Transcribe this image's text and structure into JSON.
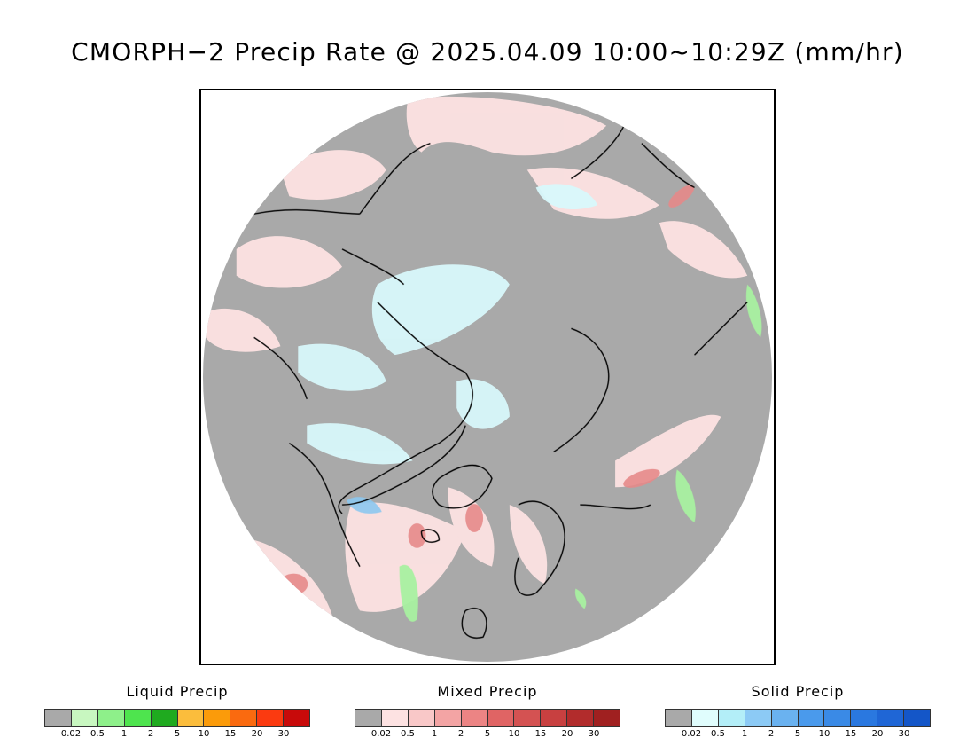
{
  "title": "CMORPH−2 Precip Rate @ 2025.04.09 10:00~10:29Z (mm/hr)",
  "map": {
    "projection": "north-polar-stereographic",
    "background_color": "#a9a9a9",
    "coastline_color": "#000000",
    "precip_types_shown": [
      "liquid",
      "mixed",
      "solid"
    ]
  },
  "legends": [
    {
      "id": "liquid",
      "label": "Liquid Precip",
      "colors": [
        "#a9a9a9",
        "#c8f7c0",
        "#8ef08a",
        "#4ee44e",
        "#1faa1f",
        "#fbbd3c",
        "#fb9b0a",
        "#fa6a0f",
        "#fb3a10",
        "#c80a0a"
      ],
      "ticks": [
        "0.02",
        "0.5",
        "1",
        "2",
        "5",
        "10",
        "15",
        "20",
        "30"
      ]
    },
    {
      "id": "mixed",
      "label": "Mixed Precip",
      "colors": [
        "#a9a9a9",
        "#fde2e2",
        "#f9c8c8",
        "#f3a4a4",
        "#ec8484",
        "#e06464",
        "#d45252",
        "#c84040",
        "#b22c2c",
        "#a02020"
      ],
      "ticks": [
        "0.02",
        "0.5",
        "1",
        "2",
        "5",
        "10",
        "15",
        "20",
        "30"
      ]
    },
    {
      "id": "solid",
      "label": "Solid Precip",
      "colors": [
        "#a9a9a9",
        "#e0fdfd",
        "#b3eef8",
        "#8ccaf5",
        "#6ab2f0",
        "#4a9aec",
        "#3a8ae6",
        "#2a78e0",
        "#1f66d6",
        "#1456c8"
      ],
      "ticks": [
        "0.02",
        "0.5",
        "1",
        "2",
        "5",
        "10",
        "15",
        "20",
        "30"
      ]
    }
  ]
}
